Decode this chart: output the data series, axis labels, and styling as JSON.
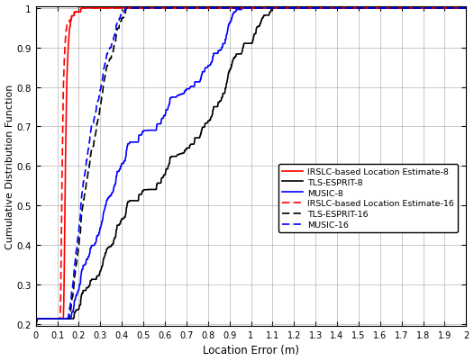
{
  "xlabel": "Location Error (m)",
  "ylabel": "Cumulative Distribution Function",
  "xlim": [
    0,
    2.0
  ],
  "ylim": [
    0.195,
    1.005
  ],
  "xticks": [
    0,
    0.1,
    0.2,
    0.3,
    0.4,
    0.5,
    0.6,
    0.7,
    0.8,
    0.9,
    1.0,
    1.1,
    1.2,
    1.3,
    1.4,
    1.5,
    1.6,
    1.7,
    1.8,
    1.9,
    2.0
  ],
  "xtick_labels": [
    "0",
    "0.1",
    "0.2",
    "0.3",
    "0.4",
    "0.5",
    "0.6",
    "0.7",
    "0.8",
    "0.9",
    "1",
    "1.1",
    "1.2",
    "1.3",
    "1.4",
    "1.5",
    "1.6",
    "1.7",
    "1.8",
    "1.9",
    "2"
  ],
  "yticks": [
    0.2,
    0.3,
    0.4,
    0.5,
    0.6,
    0.7,
    0.8,
    0.9,
    1.0
  ],
  "ytick_labels": [
    "0.2",
    "0.3",
    "0.4",
    "0.5",
    "0.6",
    "0.7",
    "0.8",
    "0.9",
    "1"
  ],
  "legend_entries": [
    "IRSLC-based Location Estimate-8",
    "TLS-ESPRIT-8",
    "MUSIC-8",
    "IRSLC-based Location Estimate-16",
    "TLS-ESPRIT-16",
    "MUSIC-16"
  ],
  "colors": {
    "irslc_8": "#ff0000",
    "tls_8": "#000000",
    "music_8": "#0000ff",
    "irslc_16": "#ff0000",
    "tls_16": "#000000",
    "music_16": "#0000ff"
  },
  "background": "#ffffff",
  "grid_color": "#b0b0b0",
  "figsize": [
    5.26,
    4.02
  ],
  "dpi": 100
}
